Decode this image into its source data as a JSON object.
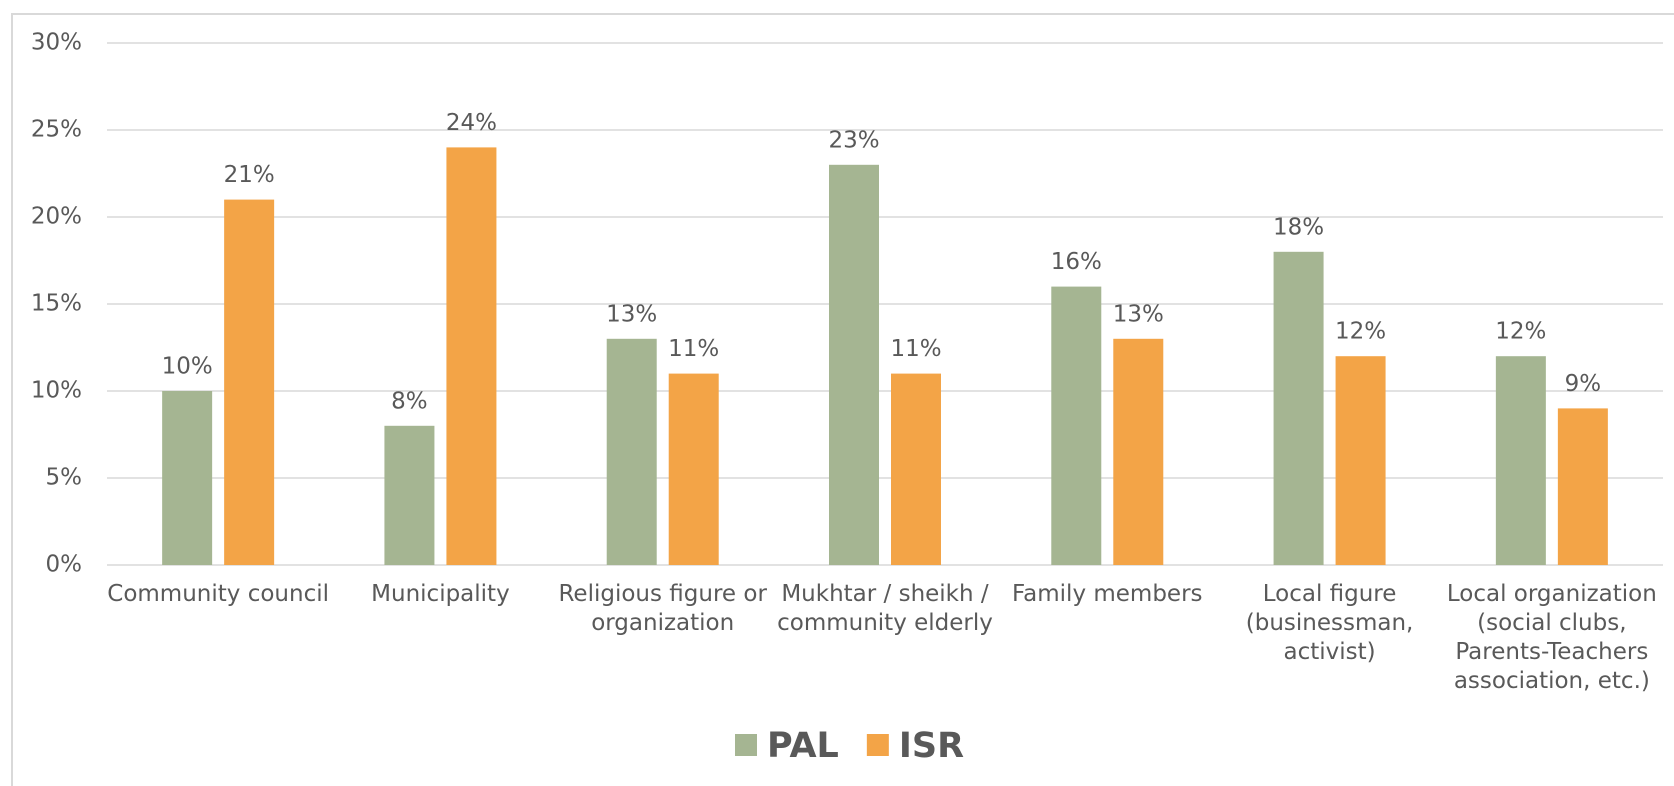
{
  "chart_data": {
    "type": "bar",
    "categories": [
      "Community council",
      "Municipality",
      "Religious figure or organization",
      "Mukhtar / sheikh / community elderly",
      "Family members",
      "Local figure (businessman, activist)",
      "Local organization (social clubs, Parents-Teachers association, etc.)"
    ],
    "series": [
      {
        "name": "PAL",
        "color": "#a5b592",
        "values": [
          10,
          8,
          13,
          23,
          16,
          18,
          12
        ],
        "value_labels": [
          "10%",
          "8%",
          "13%",
          "23%",
          "16%",
          "18%",
          "12%"
        ]
      },
      {
        "name": "ISR",
        "color": "#f3a447",
        "values": [
          21,
          24,
          11,
          11,
          13,
          12,
          9
        ],
        "value_labels": [
          "21%",
          "24%",
          "11%",
          "11%",
          "13%",
          "12%",
          "9%"
        ]
      }
    ],
    "ylim": [
      0,
      30
    ],
    "yticks": [
      {
        "value": 0,
        "label": "0%"
      },
      {
        "value": 5,
        "label": "5%"
      },
      {
        "value": 10,
        "label": "10%"
      },
      {
        "value": 15,
        "label": "15%"
      },
      {
        "value": 20,
        "label": "20%"
      },
      {
        "value": 25,
        "label": "25%"
      },
      {
        "value": 30,
        "label": "30%"
      }
    ],
    "grid": true,
    "legend": "bottom"
  }
}
